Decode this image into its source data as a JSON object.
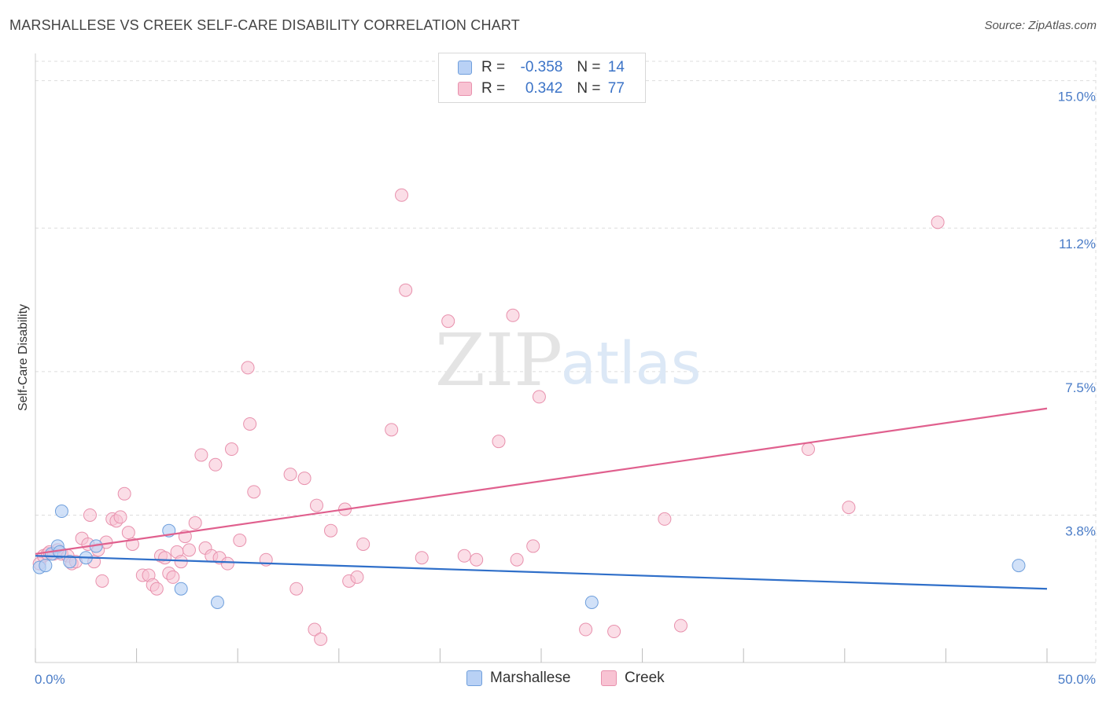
{
  "title": "MARSHALLESE VS CREEK SELF-CARE DISABILITY CORRELATION CHART",
  "source": "Source: ZipAtlas.com",
  "watermark": {
    "zip": "ZIP",
    "atlas": "atlas"
  },
  "legend": {
    "marshallese": {
      "r_label": "R = ",
      "r_value": "-0.358",
      "n_label": "N = ",
      "n_value": "14"
    },
    "creek": {
      "r_label": "R = ",
      "r_value": "0.342",
      "n_label": "N = ",
      "n_value": "77"
    }
  },
  "bottom_legend": {
    "marshallese": "Marshallese",
    "creek": "Creek"
  },
  "colors": {
    "marshallese_fill": "#b9d1f5",
    "marshallese_stroke": "#6f9fdc",
    "marshallese_line": "#2f6fc9",
    "creek_fill": "#f8c3d3",
    "creek_stroke": "#e891ad",
    "creek_line": "#e0608e",
    "tick_label": "#4a7cc7",
    "grid": "#dddddd"
  },
  "chart_data": {
    "type": "scatter",
    "title": "MARSHALLESE VS CREEK SELF-CARE DISABILITY CORRELATION CHART",
    "xlabel": "",
    "ylabel": "Self-Care Disability",
    "xlim": [
      0,
      50
    ],
    "ylim": [
      0,
      15.5
    ],
    "x_tick_labels": {
      "min": "0.0%",
      "max": "50.0%"
    },
    "y_ticks": [
      {
        "value": 3.8,
        "label": "3.8%"
      },
      {
        "value": 7.5,
        "label": "7.5%"
      },
      {
        "value": 11.2,
        "label": "11.2%"
      },
      {
        "value": 15.0,
        "label": "15.0%"
      }
    ],
    "series": [
      {
        "name": "Marshallese",
        "r": -0.358,
        "n": 14,
        "trend": {
          "x": [
            0,
            50
          ],
          "y": [
            2.75,
            1.9
          ]
        },
        "points": [
          {
            "x": 0.2,
            "y": 2.45
          },
          {
            "x": 0.5,
            "y": 2.5
          },
          {
            "x": 0.8,
            "y": 2.8
          },
          {
            "x": 1.1,
            "y": 3.0
          },
          {
            "x": 1.2,
            "y": 2.85
          },
          {
            "x": 1.3,
            "y": 3.9
          },
          {
            "x": 1.7,
            "y": 2.6
          },
          {
            "x": 2.5,
            "y": 2.7
          },
          {
            "x": 3.0,
            "y": 3.0
          },
          {
            "x": 6.6,
            "y": 3.4
          },
          {
            "x": 7.2,
            "y": 1.9
          },
          {
            "x": 9.0,
            "y": 1.55
          },
          {
            "x": 27.5,
            "y": 1.55
          },
          {
            "x": 48.6,
            "y": 2.5
          }
        ]
      },
      {
        "name": "Creek",
        "r": 0.342,
        "n": 77,
        "trend": {
          "x": [
            0,
            50
          ],
          "y": [
            2.8,
            6.55
          ]
        },
        "points": [
          {
            "x": 0.2,
            "y": 2.55
          },
          {
            "x": 0.4,
            "y": 2.75
          },
          {
            "x": 0.6,
            "y": 2.8
          },
          {
            "x": 0.7,
            "y": 2.85
          },
          {
            "x": 0.9,
            "y": 2.8
          },
          {
            "x": 1.1,
            "y": 2.9
          },
          {
            "x": 1.3,
            "y": 2.8
          },
          {
            "x": 1.6,
            "y": 2.75
          },
          {
            "x": 1.8,
            "y": 2.55
          },
          {
            "x": 2.0,
            "y": 2.6
          },
          {
            "x": 2.3,
            "y": 3.2
          },
          {
            "x": 2.6,
            "y": 3.05
          },
          {
            "x": 2.7,
            "y": 3.8
          },
          {
            "x": 2.9,
            "y": 2.6
          },
          {
            "x": 3.1,
            "y": 2.9
          },
          {
            "x": 3.3,
            "y": 2.1
          },
          {
            "x": 3.5,
            "y": 3.1
          },
          {
            "x": 3.8,
            "y": 3.7
          },
          {
            "x": 4.0,
            "y": 3.65
          },
          {
            "x": 4.2,
            "y": 3.75
          },
          {
            "x": 4.4,
            "y": 4.35
          },
          {
            "x": 4.6,
            "y": 3.35
          },
          {
            "x": 4.8,
            "y": 3.05
          },
          {
            "x": 5.3,
            "y": 2.25
          },
          {
            "x": 5.6,
            "y": 2.25
          },
          {
            "x": 5.8,
            "y": 2.0
          },
          {
            "x": 6.0,
            "y": 1.9
          },
          {
            "x": 6.2,
            "y": 2.75
          },
          {
            "x": 6.4,
            "y": 2.7
          },
          {
            "x": 6.6,
            "y": 2.3
          },
          {
            "x": 6.8,
            "y": 2.2
          },
          {
            "x": 7.0,
            "y": 2.85
          },
          {
            "x": 7.2,
            "y": 2.6
          },
          {
            "x": 7.4,
            "y": 3.25
          },
          {
            "x": 7.6,
            "y": 2.9
          },
          {
            "x": 7.9,
            "y": 3.6
          },
          {
            "x": 8.2,
            "y": 5.35
          },
          {
            "x": 8.4,
            "y": 2.95
          },
          {
            "x": 8.7,
            "y": 2.75
          },
          {
            "x": 8.9,
            "y": 5.1
          },
          {
            "x": 9.1,
            "y": 2.7
          },
          {
            "x": 9.5,
            "y": 2.55
          },
          {
            "x": 9.7,
            "y": 5.5
          },
          {
            "x": 10.1,
            "y": 3.15
          },
          {
            "x": 10.5,
            "y": 7.6
          },
          {
            "x": 10.6,
            "y": 6.15
          },
          {
            "x": 10.8,
            "y": 4.4
          },
          {
            "x": 11.4,
            "y": 2.65
          },
          {
            "x": 12.6,
            "y": 4.85
          },
          {
            "x": 12.9,
            "y": 1.9
          },
          {
            "x": 13.3,
            "y": 4.75
          },
          {
            "x": 13.8,
            "y": 0.85
          },
          {
            "x": 13.9,
            "y": 4.05
          },
          {
            "x": 14.1,
            "y": 0.6
          },
          {
            "x": 14.6,
            "y": 3.4
          },
          {
            "x": 15.3,
            "y": 3.95
          },
          {
            "x": 15.5,
            "y": 2.1
          },
          {
            "x": 15.9,
            "y": 2.2
          },
          {
            "x": 16.2,
            "y": 3.05
          },
          {
            "x": 17.6,
            "y": 6.0
          },
          {
            "x": 18.1,
            "y": 12.05
          },
          {
            "x": 18.3,
            "y": 9.6
          },
          {
            "x": 19.1,
            "y": 2.7
          },
          {
            "x": 20.4,
            "y": 8.8
          },
          {
            "x": 21.2,
            "y": 2.75
          },
          {
            "x": 21.8,
            "y": 2.65
          },
          {
            "x": 22.9,
            "y": 5.7
          },
          {
            "x": 23.6,
            "y": 8.95
          },
          {
            "x": 23.8,
            "y": 2.65
          },
          {
            "x": 24.6,
            "y": 3.0
          },
          {
            "x": 24.9,
            "y": 6.85
          },
          {
            "x": 27.2,
            "y": 0.85
          },
          {
            "x": 28.6,
            "y": 0.8
          },
          {
            "x": 31.1,
            "y": 3.7
          },
          {
            "x": 31.9,
            "y": 0.95
          },
          {
            "x": 38.2,
            "y": 5.5
          },
          {
            "x": 40.2,
            "y": 4.0
          },
          {
            "x": 44.6,
            "y": 11.35
          }
        ]
      }
    ]
  }
}
